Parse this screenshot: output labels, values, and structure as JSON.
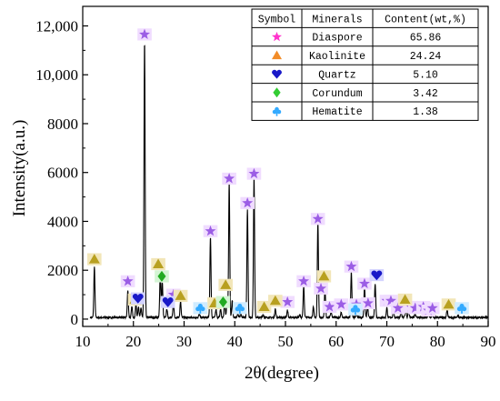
{
  "chart_data": {
    "type": "line",
    "xlabel": "2θ(degree)",
    "ylabel": "Intensity(a.u.)",
    "xlim": [
      10,
      90
    ],
    "ylim": [
      -300,
      12800
    ],
    "x_ticks": [
      10,
      20,
      30,
      40,
      50,
      60,
      70,
      80,
      90
    ],
    "x_tick_labels": [
      "10",
      "20",
      "30",
      "40",
      "50",
      "60",
      "70",
      "80",
      "90"
    ],
    "y_ticks": [
      0,
      2000,
      4000,
      6000,
      8000,
      10000,
      12000
    ],
    "y_tick_labels": [
      "0",
      "2000",
      "4000",
      "6000",
      "8000",
      "10,000",
      "12,000"
    ],
    "grid": false,
    "legend_position": "top-right",
    "baseline": 30,
    "peaks": [
      [
        12.3,
        2050
      ],
      [
        18.9,
        1100
      ],
      [
        19.7,
        450
      ],
      [
        20.5,
        550
      ],
      [
        21.0,
        450
      ],
      [
        21.5,
        420
      ],
      [
        22.2,
        11300
      ],
      [
        25.3,
        1850
      ],
      [
        25.7,
        1450
      ],
      [
        26.6,
        350
      ],
      [
        27.9,
        600
      ],
      [
        29.3,
        650
      ],
      [
        33.0,
        150
      ],
      [
        35.2,
        3300
      ],
      [
        36.3,
        350
      ],
      [
        37.2,
        350
      ],
      [
        38.0,
        650
      ],
      [
        38.5,
        850
      ],
      [
        38.9,
        5500
      ],
      [
        39.5,
        700
      ],
      [
        40.6,
        120
      ],
      [
        41.2,
        180
      ],
      [
        42.5,
        4400
      ],
      [
        43.8,
        5700
      ],
      [
        45.6,
        120
      ],
      [
        48.0,
        350
      ],
      [
        50.4,
        300
      ],
      [
        52.8,
        120
      ],
      [
        53.6,
        1300
      ],
      [
        55.5,
        420
      ],
      [
        56.4,
        3900
      ],
      [
        57.8,
        1200
      ],
      [
        59.0,
        250
      ],
      [
        61.0,
        200
      ],
      [
        63.0,
        1850
      ],
      [
        64.0,
        200
      ],
      [
        65.6,
        1300
      ],
      [
        66.2,
        450
      ],
      [
        67.7,
        1400
      ],
      [
        70.0,
        400
      ],
      [
        71.3,
        250
      ],
      [
        72.8,
        200
      ],
      [
        73.7,
        500
      ],
      [
        74.3,
        250
      ],
      [
        75.6,
        150
      ],
      [
        78.2,
        150
      ],
      [
        79.0,
        150
      ],
      [
        81.9,
        350
      ],
      [
        84.0,
        100
      ]
    ],
    "markers": [
      {
        "mineral": "Diaspore",
        "points": [
          [
            18.9,
            1550
          ],
          [
            22.2,
            11650
          ],
          [
            27.9,
            1000
          ],
          [
            35.2,
            3600
          ],
          [
            38.9,
            5750
          ],
          [
            42.5,
            4750
          ],
          [
            43.8,
            5950
          ],
          [
            50.4,
            700
          ],
          [
            53.6,
            1550
          ],
          [
            56.4,
            4100
          ],
          [
            57.0,
            1250
          ],
          [
            58.7,
            500
          ],
          [
            61.0,
            600
          ],
          [
            63.0,
            2150
          ],
          [
            64.0,
            600
          ],
          [
            65.6,
            1450
          ],
          [
            66.3,
            650
          ],
          [
            70.0,
            750
          ],
          [
            70.8,
            750
          ],
          [
            72.2,
            450
          ],
          [
            74.8,
            500
          ],
          [
            75.6,
            450
          ],
          [
            77.2,
            500
          ],
          [
            78.2,
            350
          ],
          [
            79.0,
            450
          ]
        ]
      },
      {
        "mineral": "Kaolinite",
        "points": [
          [
            12.3,
            2450
          ],
          [
            20.3,
            800
          ],
          [
            24.9,
            2250
          ],
          [
            29.3,
            950
          ],
          [
            36.0,
            650
          ],
          [
            38.2,
            1400
          ],
          [
            45.8,
            500
          ],
          [
            48.0,
            750
          ],
          [
            57.6,
            1750
          ],
          [
            73.6,
            800
          ],
          [
            82.2,
            600
          ]
        ]
      },
      {
        "mineral": "Quartz",
        "points": [
          [
            20.9,
            850
          ],
          [
            26.8,
            700
          ],
          [
            68.0,
            1800
          ]
        ]
      },
      {
        "mineral": "Corundum",
        "points": [
          [
            25.6,
            1750
          ],
          [
            37.7,
            700
          ]
        ]
      },
      {
        "mineral": "Hematite",
        "points": [
          [
            33.2,
            450
          ],
          [
            41.0,
            450
          ],
          [
            63.8,
            400
          ],
          [
            84.8,
            450
          ]
        ]
      }
    ],
    "legend": {
      "headers": [
        "Symbol",
        "Minerals",
        "Content(wt,%)"
      ],
      "rows": [
        {
          "mineral": "Diaspore",
          "content": "65.86",
          "symbol": "star-icon",
          "color": "#ff33cc"
        },
        {
          "mineral": "Kaolinite",
          "content": "24.24",
          "symbol": "triangle-icon",
          "color": "#f28c28"
        },
        {
          "mineral": "Quartz",
          "content": "5.10",
          "symbol": "heart-icon",
          "color": "#1919c8"
        },
        {
          "mineral": "Corundum",
          "content": "3.42",
          "symbol": "diamond-icon",
          "color": "#33cc33"
        },
        {
          "mineral": "Hematite",
          "content": "1.38",
          "symbol": "club-icon",
          "color": "#33aaff"
        }
      ]
    },
    "plot_marker_colors": {
      "Diaspore": {
        "fill": "#9b5de5",
        "glow": "#f0dcff"
      },
      "Kaolinite": {
        "fill": "#b8a020",
        "glow": "#f2e6b8"
      },
      "Quartz": {
        "fill": "#1919c8",
        "glow": "#d4d4ff"
      },
      "Corundum": {
        "fill": "#22aa22",
        "glow": "#d4f5d4"
      },
      "Hematite": {
        "fill": "#33aaff",
        "glow": "#d0ecff"
      }
    },
    "line_color": "#000000"
  }
}
